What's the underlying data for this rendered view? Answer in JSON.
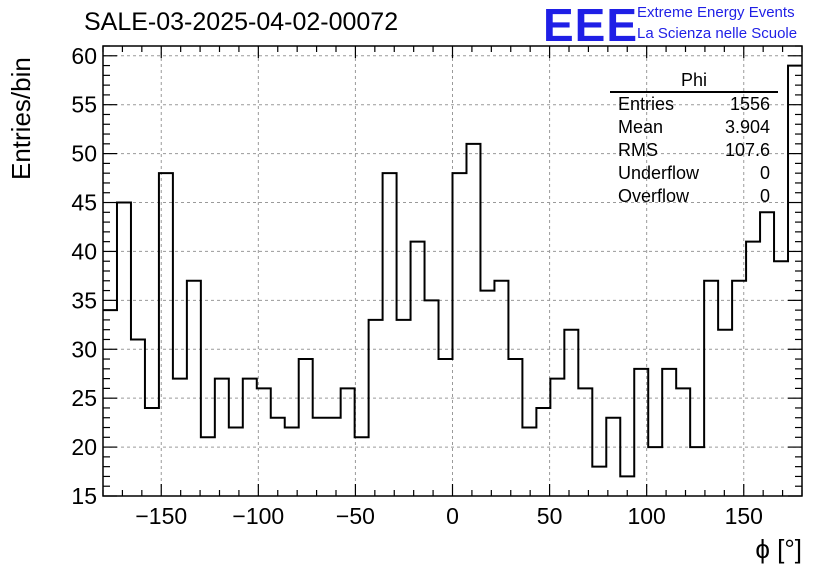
{
  "chart_data": {
    "type": "histogram",
    "title": "SALE-03-2025-04-02-00072",
    "xlabel": "ϕ [°]",
    "ylabel": "Entries/bin",
    "xlim": [
      -180,
      180
    ],
    "ylim": [
      15,
      61
    ],
    "bin_width": 7.2,
    "xticks": [
      -150,
      -100,
      -50,
      0,
      50,
      100,
      150
    ],
    "xtick_labels": [
      "−150",
      "−100",
      "−50",
      "0",
      "50",
      "100",
      "150"
    ],
    "yticks": [
      15,
      20,
      25,
      30,
      35,
      40,
      45,
      50,
      55,
      60
    ],
    "grid": true,
    "bin_edges_start": -180,
    "values": [
      34,
      45,
      31,
      24,
      48,
      27,
      37,
      21,
      27,
      22,
      27,
      26,
      23,
      22,
      29,
      23,
      23,
      26,
      21,
      33,
      48,
      33,
      41,
      35,
      29,
      48,
      51,
      36,
      37,
      29,
      22,
      24,
      27,
      32,
      26,
      18,
      23,
      17,
      28,
      20,
      28,
      26,
      20,
      37,
      32,
      37,
      41,
      44,
      39,
      59
    ],
    "stats_box": {
      "title": "Phi",
      "rows": [
        {
          "label": "Entries",
          "value": "1556"
        },
        {
          "label": "Mean",
          "value": "3.904"
        },
        {
          "label": "RMS",
          "value": "107.6"
        },
        {
          "label": "Underflow",
          "value": "0"
        },
        {
          "label": "Overflow",
          "value": "0"
        }
      ]
    }
  },
  "logo": {
    "text": "EEE",
    "line1": "Extreme Energy Events",
    "line2": "La Scienza nelle Scuole",
    "color": "#1f1fe6"
  }
}
